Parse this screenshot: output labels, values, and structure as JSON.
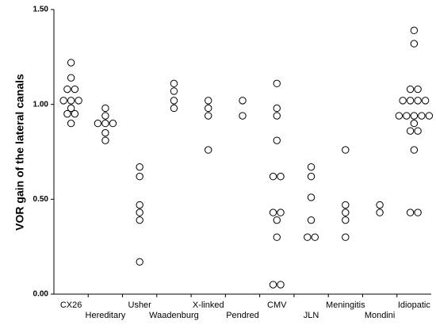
{
  "chart_data": {
    "type": "strip",
    "y_label": "VOR gain of the lateral canals",
    "categories": [
      "CX26",
      "Hereditary",
      "Usher",
      "Waadenburg",
      "X-linked",
      "Pendred",
      "CMV",
      "JLN",
      "Meningitis",
      "Mondini",
      "Idiopatic"
    ],
    "values": [
      [
        1.22,
        1.14,
        1.08,
        1.08,
        1.02,
        1.02,
        1.02,
        0.98,
        0.95,
        0.95,
        0.9
      ],
      [
        0.98,
        0.94,
        0.9,
        0.9,
        0.9,
        0.85,
        0.81
      ],
      [
        0.67,
        0.62,
        0.47,
        0.43,
        0.39,
        0.17
      ],
      [
        1.11,
        1.07,
        1.02,
        0.98
      ],
      [
        1.02,
        0.98,
        0.94,
        0.76
      ],
      [
        1.02,
        0.94
      ],
      [
        1.11,
        0.98,
        0.94,
        0.81,
        0.62,
        0.62,
        0.43,
        0.43,
        0.39,
        0.3,
        0.05,
        0.05
      ],
      [
        0.67,
        0.62,
        0.51,
        0.39,
        0.3,
        0.3
      ],
      [
        0.76,
        0.47,
        0.43,
        0.39,
        0.3
      ],
      [
        0.47,
        0.43
      ],
      [
        1.39,
        1.32,
        1.08,
        1.08,
        1.02,
        1.02,
        1.02,
        1.02,
        0.94,
        0.94,
        0.94,
        0.94,
        0.94,
        0.9,
        0.86,
        0.86,
        0.76,
        0.43,
        0.43
      ]
    ],
    "color": "#000000",
    "ylim": [
      0,
      1.5
    ],
    "yticks": [
      {
        "value": 0,
        "label": "0.00"
      },
      {
        "value": 0.5,
        "label": "0.50"
      },
      {
        "value": 1,
        "label": "1.00"
      },
      {
        "value": 1.5,
        "label": "1.50"
      }
    ]
  }
}
